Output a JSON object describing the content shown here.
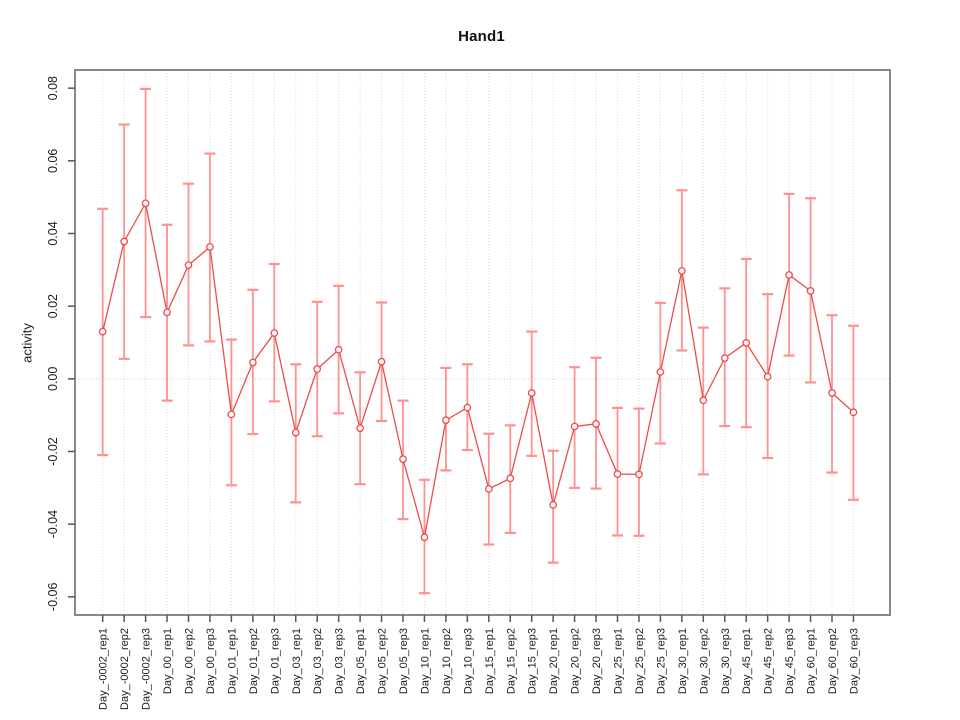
{
  "page": {
    "background": "#ffffff"
  },
  "chart_data": {
    "type": "line",
    "title": "Hand1",
    "ylabel": "activity",
    "xlabel": "",
    "legend": "none",
    "marker": "open-circle",
    "grid": "vertical dotted gridline at every category; dotted horizontal line at y=0",
    "ylim": [
      -0.065,
      0.085
    ],
    "y_ticks": [
      0.08,
      0.06,
      0.04,
      0.02,
      0,
      -0.02,
      -0.04,
      -0.06
    ],
    "y_tick_labels": [
      "0.08",
      "0.06",
      "0.04",
      "0.02",
      "0.00",
      "-0.02",
      "-0.04",
      "-0.06"
    ],
    "colors": {
      "line": "#ee4b4b",
      "marker": "#ee4b4b",
      "error_bar": "#ff9191",
      "grid": "#dadada",
      "zero_line": "#cfcfcf",
      "box": "#888888",
      "tick": "#555555",
      "text": "#1c1c1c"
    },
    "categories": [
      "Day_-0002_rep1",
      "Day_-0002_rep2",
      "Day_-0002_rep3",
      "Day_00_rep1",
      "Day_00_rep2",
      "Day_00_rep3",
      "Day_01_rep1",
      "Day_01_rep2",
      "Day_01_rep3",
      "Day_03_rep1",
      "Day_03_rep2",
      "Day_03_rep3",
      "Day_05_rep1",
      "Day_05_rep2",
      "Day_05_rep3",
      "Day_10_rep1",
      "Day_10_rep2",
      "Day_10_rep3",
      "Day_15_rep1",
      "Day_15_rep2",
      "Day_15_rep3",
      "Day_20_rep1",
      "Day_20_rep2",
      "Day_20_rep3",
      "Day_25_rep1",
      "Day_25_rep2",
      "Day_25_rep3",
      "Day_30_rep1",
      "Day_30_rep2",
      "Day_30_rep3",
      "Day_45_rep1",
      "Day_45_rep2",
      "Day_45_rep3",
      "Day_60_rep1",
      "Day_60_rep2",
      "Day_60_rep3"
    ],
    "series": [
      {
        "name": "Hand1 activity",
        "values": [
          0.013,
          0.0378,
          0.0483,
          0.0183,
          0.0313,
          0.0363,
          -0.0098,
          0.0045,
          0.0126,
          -0.0148,
          0.0027,
          0.008,
          -0.0136,
          0.0047,
          -0.0221,
          -0.0436,
          -0.0114,
          -0.0079,
          -0.0303,
          -0.0274,
          -0.0039,
          -0.0347,
          -0.0131,
          -0.0124,
          -0.0262,
          -0.0263,
          0.0019,
          0.0297,
          -0.0059,
          0.0057,
          0.0099,
          0.0006,
          0.0286,
          0.0242,
          -0.0039,
          -0.0092
        ],
        "error_low": [
          -0.021,
          0.0055,
          0.017,
          -0.006,
          0.0092,
          0.0103,
          -0.0293,
          -0.0152,
          -0.0062,
          -0.034,
          -0.0158,
          -0.0095,
          -0.029,
          -0.0116,
          -0.0386,
          -0.059,
          -0.0252,
          -0.0196,
          -0.0456,
          -0.0424,
          -0.0212,
          -0.0506,
          -0.03,
          -0.0302,
          -0.0431,
          -0.0432,
          -0.0178,
          0.0078,
          -0.0263,
          -0.013,
          -0.0133,
          -0.0218,
          0.0064,
          -0.001,
          -0.0258,
          -0.0333
        ],
        "error_high": [
          0.0468,
          0.07,
          0.0798,
          0.0424,
          0.0537,
          0.062,
          0.0108,
          0.0245,
          0.0316,
          0.004,
          0.0212,
          0.0256,
          0.0018,
          0.021,
          -0.006,
          -0.0278,
          0.003,
          0.004,
          -0.0151,
          -0.0128,
          0.013,
          -0.0198,
          0.0032,
          0.0058,
          -0.008,
          -0.0082,
          0.0209,
          0.0519,
          0.0141,
          0.0249,
          0.033,
          0.0233,
          0.0509,
          0.0497,
          0.0175,
          0.0146
        ]
      }
    ]
  }
}
